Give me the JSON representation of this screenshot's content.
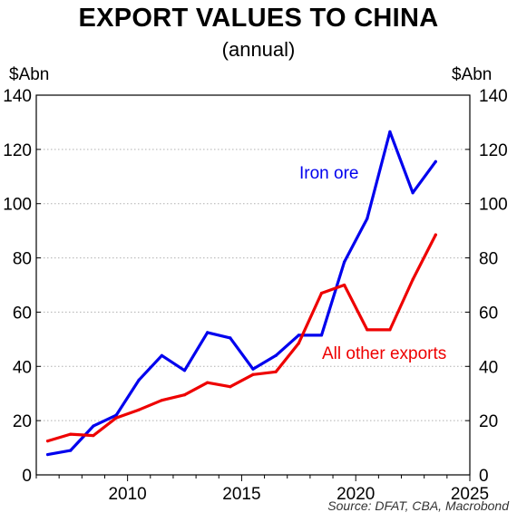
{
  "chart_data": {
    "type": "line",
    "title": "EXPORT VALUES TO CHINA",
    "subtitle": "(annual)",
    "ylabel_left": "$Abn",
    "ylabel_right": "$Abn",
    "ylim": [
      0,
      140
    ],
    "yticks": [
      0,
      20,
      40,
      60,
      80,
      100,
      120,
      140
    ],
    "xlim": [
      2006,
      2025
    ],
    "xticks": [
      2010,
      2015,
      2020,
      2025
    ],
    "grid": "horizontal dotted",
    "x": [
      2006.5,
      2007.5,
      2008.5,
      2009.5,
      2010.5,
      2011.5,
      2012.5,
      2013.5,
      2014.5,
      2015.5,
      2016.5,
      2017.5,
      2018.5,
      2019.5,
      2020.5,
      2021.5,
      2022.5,
      2023.5
    ],
    "series": [
      {
        "name": "Iron ore",
        "color": "#0000ee",
        "values": [
          7.5,
          9,
          18,
          22,
          35,
          44,
          38.5,
          52.5,
          50.5,
          39,
          44,
          51.5,
          51.5,
          78.5,
          94.5,
          126.5,
          104,
          115.5
        ]
      },
      {
        "name": "All other exports",
        "color": "#ee0000",
        "values": [
          12.5,
          15,
          14.5,
          21,
          24,
          27.5,
          29.5,
          34,
          32.5,
          37,
          38,
          48.5,
          67,
          70,
          53.5,
          53.5,
          72,
          88.5
        ]
      }
    ],
    "source": "Source: DFAT, CBA, Macrobond"
  }
}
